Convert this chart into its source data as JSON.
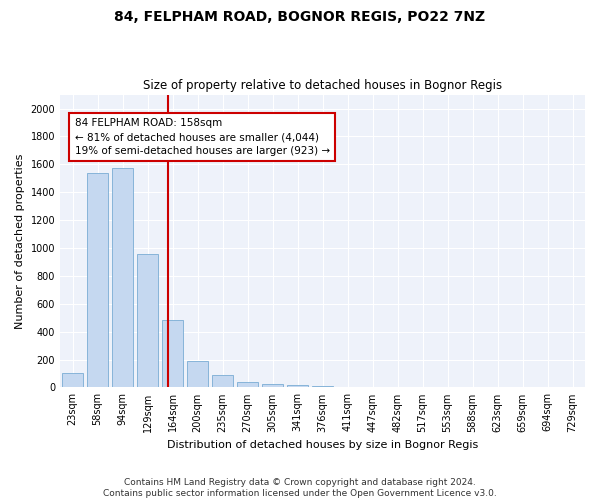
{
  "title": "84, FELPHAM ROAD, BOGNOR REGIS, PO22 7NZ",
  "subtitle": "Size of property relative to detached houses in Bognor Regis",
  "xlabel": "Distribution of detached houses by size in Bognor Regis",
  "ylabel": "Number of detached properties",
  "categories": [
    "23sqm",
    "58sqm",
    "94sqm",
    "129sqm",
    "164sqm",
    "200sqm",
    "235sqm",
    "270sqm",
    "305sqm",
    "341sqm",
    "376sqm",
    "411sqm",
    "447sqm",
    "482sqm",
    "517sqm",
    "553sqm",
    "588sqm",
    "623sqm",
    "659sqm",
    "694sqm",
    "729sqm"
  ],
  "values": [
    100,
    1540,
    1570,
    960,
    480,
    190,
    90,
    40,
    25,
    18,
    10,
    5,
    0,
    0,
    0,
    0,
    0,
    0,
    0,
    0,
    0
  ],
  "bar_color": "#c5d8f0",
  "bar_edge_color": "#7aadd4",
  "marker_line_color": "#cc0000",
  "annotation_line1": "84 FELPHAM ROAD: 158sqm",
  "annotation_line2": "← 81% of detached houses are smaller (4,044)",
  "annotation_line3": "19% of semi-detached houses are larger (923) →",
  "annotation_box_facecolor": "#ffffff",
  "annotation_box_edgecolor": "#cc0000",
  "ylim": [
    0,
    2100
  ],
  "yticks": [
    0,
    200,
    400,
    600,
    800,
    1000,
    1200,
    1400,
    1600,
    1800,
    2000
  ],
  "footer1": "Contains HM Land Registry data © Crown copyright and database right 2024.",
  "footer2": "Contains public sector information licensed under the Open Government Licence v3.0.",
  "bg_color": "#ffffff",
  "plot_bg_color": "#eef2fa",
  "grid_color": "#ffffff",
  "title_fontsize": 10,
  "subtitle_fontsize": 8.5,
  "ylabel_fontsize": 8,
  "xlabel_fontsize": 8,
  "tick_fontsize": 7,
  "annotation_fontsize": 7.5,
  "footer_fontsize": 6.5
}
